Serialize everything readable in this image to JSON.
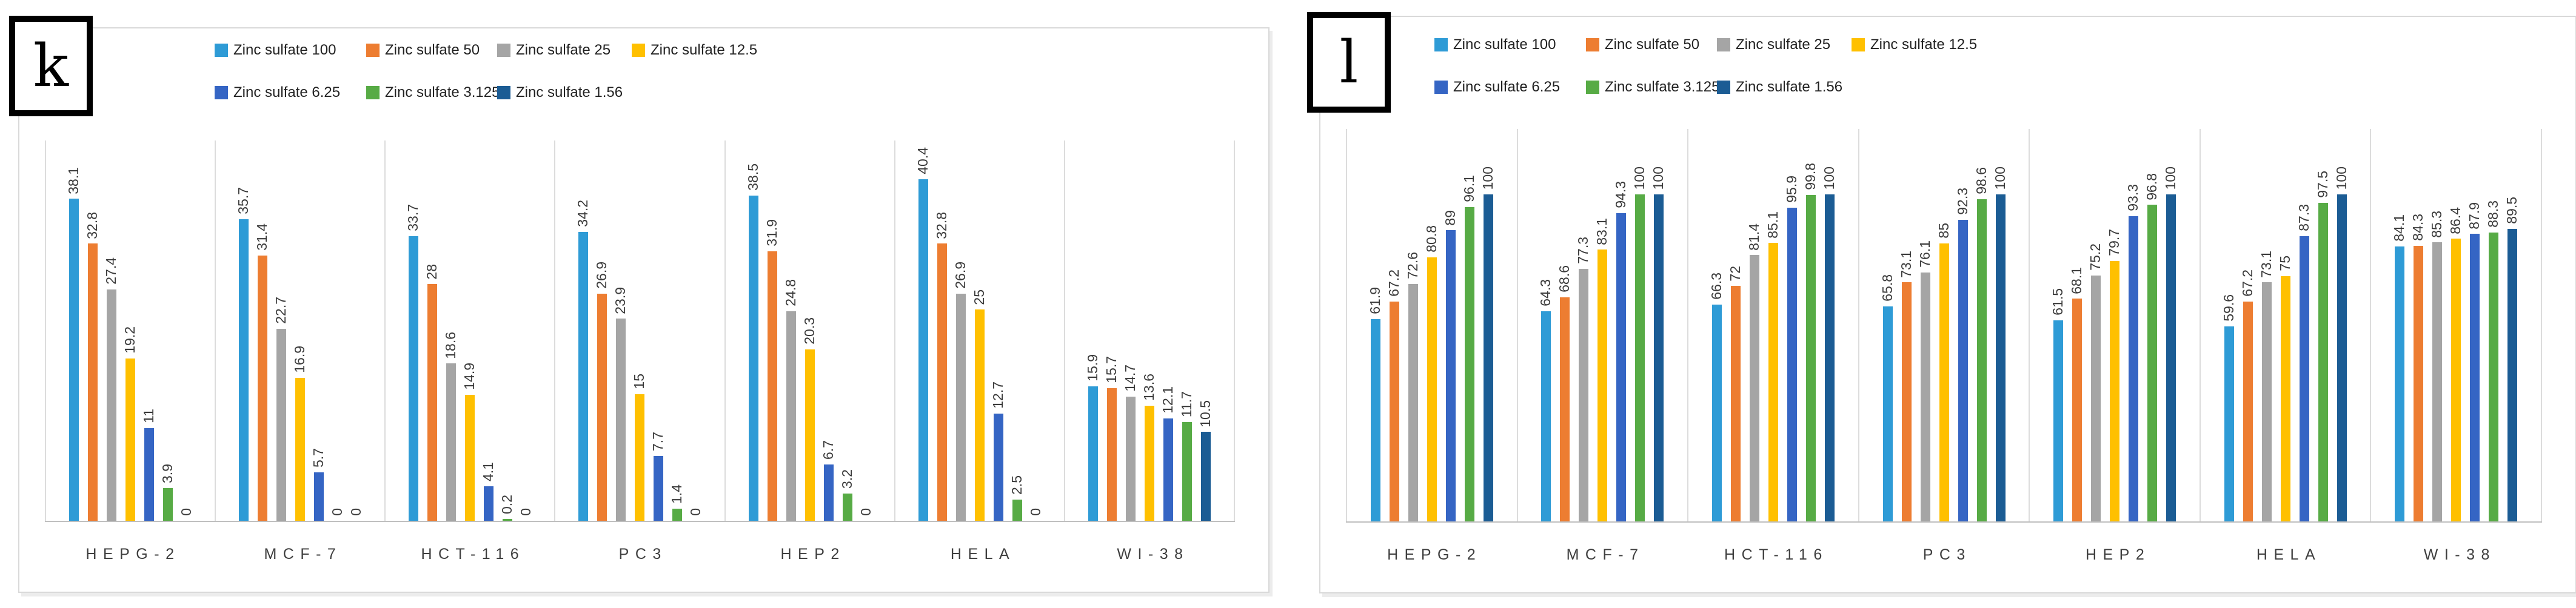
{
  "chart_data": [
    {
      "type": "bar",
      "panel_label": "k",
      "title": "",
      "xlabel": "",
      "ylabel": "",
      "ylim": [
        0,
        45
      ],
      "legend_position": "top",
      "value_labels": "rotated-90-above-bars",
      "gridlines": "vertical-category-separators",
      "categories": [
        "HEPG-2",
        "MCF-7",
        "HCT-116",
        "PC3",
        "HEP2",
        "HELA",
        "WI-38"
      ],
      "series": [
        {
          "name": "Zinc sulfate 100",
          "color": "#2E9BD6",
          "values": [
            38.1,
            35.7,
            33.7,
            34.2,
            38.5,
            40.4,
            15.9
          ]
        },
        {
          "name": "Zinc sulfate 50",
          "color": "#ED7D31",
          "values": [
            32.8,
            31.4,
            28,
            26.9,
            31.9,
            32.8,
            15.7
          ]
        },
        {
          "name": "Zinc sulfate 25",
          "color": "#A5A5A5",
          "values": [
            27.4,
            22.7,
            18.6,
            23.9,
            24.8,
            26.9,
            14.7
          ]
        },
        {
          "name": "Zinc sulfate 12.5",
          "color": "#FFC000",
          "values": [
            19.2,
            16.9,
            14.9,
            15,
            20.3,
            25,
            13.6
          ]
        },
        {
          "name": "Zinc sulfate 6.25",
          "color": "#3565C4",
          "values": [
            11,
            5.7,
            4.1,
            7.7,
            6.7,
            12.7,
            12.1
          ]
        },
        {
          "name": "Zinc sulfate 3.125",
          "color": "#57AB45",
          "values": [
            3.9,
            0,
            0.2,
            1.4,
            3.2,
            2.5,
            11.7
          ]
        },
        {
          "name": "Zinc sulfate 1.56",
          "color": "#1B5C94",
          "values": [
            0,
            0,
            0,
            0,
            0,
            0,
            10.5
          ]
        }
      ]
    },
    {
      "type": "bar",
      "panel_label": "l",
      "title": "",
      "xlabel": "",
      "ylabel": "",
      "ylim": [
        0,
        120
      ],
      "legend_position": "top",
      "value_labels": "rotated-90-above-bars",
      "gridlines": "vertical-category-separators",
      "categories": [
        "HEPG-2",
        "MCF-7",
        "HCT-116",
        "PC3",
        "HEP2",
        "HELA",
        "WI-38"
      ],
      "series": [
        {
          "name": "Zinc sulfate 100",
          "color": "#2E9BD6",
          "values": [
            61.9,
            64.3,
            66.3,
            65.8,
            61.5,
            59.6,
            84.1
          ]
        },
        {
          "name": "Zinc sulfate 50",
          "color": "#ED7D31",
          "values": [
            67.2,
            68.6,
            72,
            73.1,
            68.1,
            67.2,
            84.3
          ]
        },
        {
          "name": "Zinc sulfate 25",
          "color": "#A5A5A5",
          "values": [
            72.6,
            77.3,
            81.4,
            76.1,
            75.2,
            73.1,
            85.3
          ]
        },
        {
          "name": "Zinc sulfate 12.5",
          "color": "#FFC000",
          "values": [
            80.8,
            83.1,
            85.1,
            85,
            79.7,
            75,
            86.4
          ]
        },
        {
          "name": "Zinc sulfate 6.25",
          "color": "#3565C4",
          "values": [
            89,
            94.3,
            95.9,
            92.3,
            93.3,
            87.3,
            87.9
          ]
        },
        {
          "name": "Zinc sulfate 3.125",
          "color": "#57AB45",
          "values": [
            96.1,
            100,
            99.8,
            98.6,
            96.8,
            97.5,
            88.3
          ]
        },
        {
          "name": "Zinc sulfate 1.56",
          "color": "#1B5C94",
          "values": [
            100,
            100,
            100,
            100,
            100,
            100,
            89.5
          ]
        }
      ]
    }
  ]
}
